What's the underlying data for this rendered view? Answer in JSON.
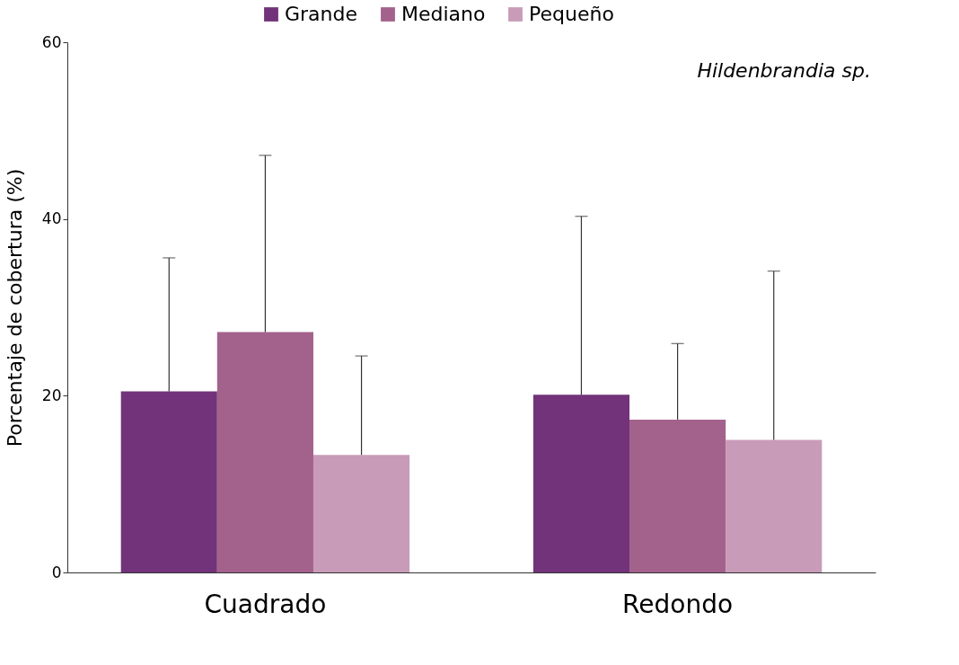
{
  "chart_data": {
    "type": "bar",
    "ylabel": "Porcentaje de cobertura (%)",
    "categories": [
      "Cuadrado",
      "Redondo"
    ],
    "series": [
      {
        "name": "Grande",
        "color": "#72337a",
        "values": [
          20.5,
          20.1
        ],
        "errors": [
          [
            20.5,
            35.6
          ],
          [
            20.1,
            40.3
          ]
        ]
      },
      {
        "name": "Mediano",
        "color": "#a3628c",
        "values": [
          27.2,
          17.3
        ],
        "errors": [
          [
            27.2,
            47.2
          ],
          [
            17.3,
            25.9
          ]
        ]
      },
      {
        "name": "Pequeño",
        "color": "#c89bb8",
        "values": [
          13.3,
          15.0
        ],
        "errors": [
          [
            13.3,
            24.5
          ],
          [
            15.0,
            34.1
          ]
        ]
      }
    ],
    "ylim": [
      0,
      60
    ],
    "yticks": [
      0,
      20,
      40,
      60
    ],
    "grid": false,
    "legend": "top",
    "annotations": [
      "Hildenbrandia sp."
    ]
  }
}
